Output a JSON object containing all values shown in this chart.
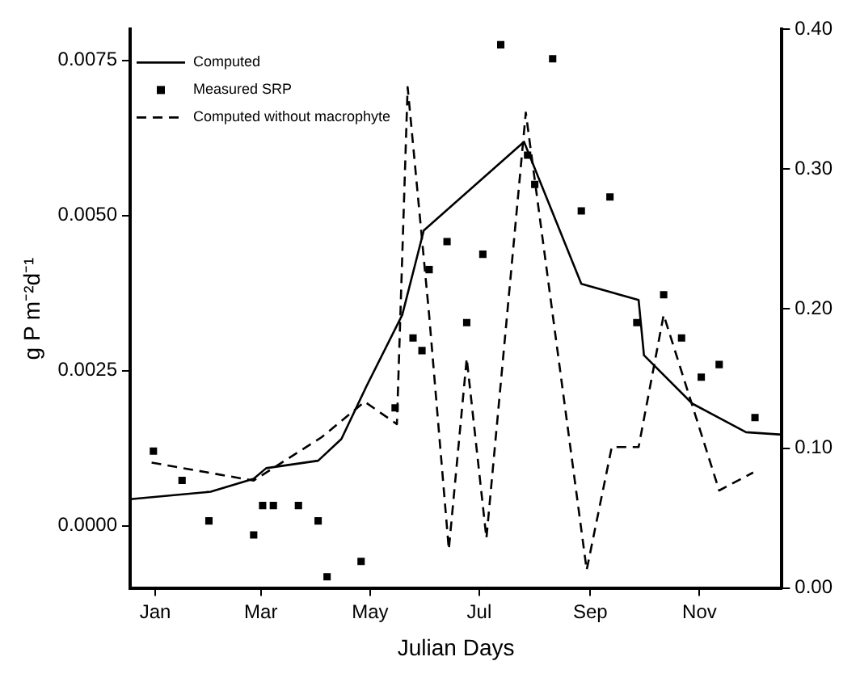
{
  "chart_data": {
    "type": "line",
    "xlabel": "Julian Days",
    "ylabel": "g P m⁻²d⁻¹",
    "xlim": [
      "--01-01",
      "--12-31"
    ],
    "xticks": [
      {
        "value": "--01-15",
        "label": "Jan"
      },
      {
        "value": "--03-15",
        "label": "Mar"
      },
      {
        "value": "--05-15",
        "label": "May"
      },
      {
        "value": "--07-15",
        "label": "Jul"
      },
      {
        "value": "--09-15",
        "label": "Sep"
      },
      {
        "value": "--11-15",
        "label": "Nov"
      }
    ],
    "ylim": [
      -0.001,
      0.008
    ],
    "yticks": [
      {
        "value": 0,
        "label": "0.0000"
      },
      {
        "value": 0.0025,
        "label": "0.0025"
      },
      {
        "value": 0.005,
        "label": "0.0050"
      },
      {
        "value": 0.0075,
        "label": "0.0075"
      }
    ],
    "y2lim": [
      0,
      0.4
    ],
    "y2ticks": [
      {
        "value": 0,
        "label": "0.00"
      },
      {
        "value": 0.1,
        "label": "0.10"
      },
      {
        "value": 0.2,
        "label": "0.20"
      },
      {
        "value": 0.3,
        "label": "0.30"
      },
      {
        "value": 0.4,
        "label": "0.40"
      }
    ],
    "legend": "top left",
    "grid": false,
    "series": [
      {
        "name": "Computed",
        "color": "#000000",
        "line_style": "solid",
        "marker": "none",
        "x": [
          "--01-01",
          "--02-15",
          "--03-11",
          "--03-18",
          "--04-16",
          "--04-29",
          "--05-13",
          "--06-02",
          "--06-14",
          "--08-09",
          "--09-10",
          "--10-12",
          "--10-15",
          "--11-11",
          "--12-11",
          "--12-31"
        ],
        "values": [
          0.00043,
          0.00055,
          0.00076,
          0.00093,
          0.00105,
          0.0014,
          0.00225,
          0.0034,
          0.00476,
          0.00619,
          0.0039,
          0.00364,
          0.00275,
          0.00197,
          0.00151,
          0.00147
        ]
      },
      {
        "name": "Measured SRP",
        "type": "scatter",
        "axis": "y2",
        "color": "#000000",
        "marker": "square",
        "x": [
          "--01-14",
          "--01-30",
          "--02-14",
          "--03-11",
          "--03-16",
          "--03-22",
          "--04-05",
          "--04-16",
          "--04-21",
          "--05-10",
          "--05-29",
          "--06-08",
          "--06-13",
          "--06-17",
          "--06-27",
          "--07-08",
          "--07-17",
          "--07-27",
          "--08-11",
          "--08-15",
          "--08-25",
          "--09-10",
          "--09-26",
          "--10-11",
          "--10-26",
          "--11-05",
          "--11-16",
          "--11-26",
          "--12-16"
        ],
        "values": [
          0.098,
          0.077,
          0.048,
          0.038,
          0.059,
          0.059,
          0.059,
          0.048,
          0.008,
          0.019,
          0.129,
          0.179,
          0.17,
          0.228,
          0.248,
          0.19,
          0.239,
          0.389,
          0.31,
          0.289,
          0.379,
          0.27,
          0.28,
          0.19,
          0.21,
          0.179,
          0.151,
          0.16,
          0.122
        ]
      },
      {
        "name": "Computed without macrophyte",
        "color": "#000000",
        "line_style": "dashed",
        "marker": "none",
        "x": [
          "--01-13",
          "--03-11",
          "--04-18",
          "--05-12",
          "--05-30",
          "--06-05",
          "--06-17",
          "--06-28",
          "--07-08",
          "--07-19",
          "--08-10",
          "--09-13",
          "--09-27",
          "--10-12",
          "--10-26",
          "--11-26",
          "--12-15"
        ],
        "values": [
          0.00102,
          0.00073,
          0.00143,
          0.002,
          0.00164,
          0.00707,
          0.0034,
          -0.00038,
          0.0027,
          -0.0002,
          0.00666,
          -0.00071,
          0.00127,
          0.00127,
          0.0034,
          0.00057,
          0.00086
        ]
      }
    ]
  }
}
